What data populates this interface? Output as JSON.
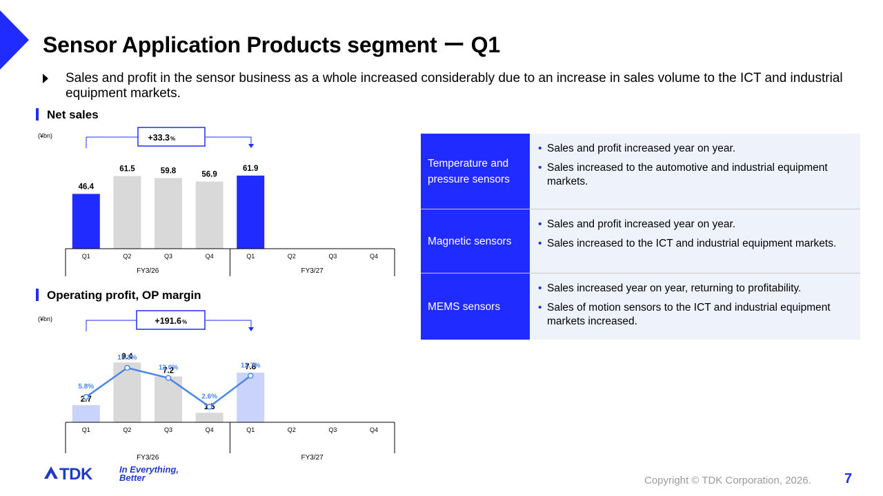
{
  "slide": {
    "title": "Sensor Application Products segment ー Q1",
    "bullet": "Sales and profit in the sensor business as a whole increased considerably due to an increase in sales volume to the ICT and industrial equipment markets."
  },
  "colors": {
    "accent": "#1f2bff",
    "gray_bar": "#d9d9d9",
    "light_blue_bar": "#c9d3fb",
    "line": "#4a86e8",
    "table_bg": "#eef3fb"
  },
  "net_sales": {
    "label": "Net sales",
    "unit": "(¥bn)",
    "growth": "+33.3",
    "growth_unit": "%"
  },
  "op_profit": {
    "label": "Operating profit, OP margin",
    "unit": "(¥bn)",
    "growth": "+191.6",
    "growth_unit": "%"
  },
  "chart_data": [
    {
      "type": "bar",
      "title": "Net sales",
      "unit": "(¥bn)",
      "categories": [
        "Q1",
        "Q2",
        "Q3",
        "Q4",
        "Q1",
        "Q2",
        "Q3",
        "Q4"
      ],
      "groups": [
        "FY3/26",
        "FY3/27"
      ],
      "values": [
        46.4,
        61.5,
        59.8,
        56.9,
        61.9,
        null,
        null,
        null
      ],
      "highlight": [
        true,
        false,
        false,
        false,
        true,
        false,
        false,
        false
      ],
      "ylim": [
        0,
        70
      ],
      "annotation": "+33.3%"
    },
    {
      "type": "bar",
      "title": "Operating profit, OP margin",
      "unit": "(¥bn)",
      "categories": [
        "Q1",
        "Q2",
        "Q3",
        "Q4",
        "Q1",
        "Q2",
        "Q3",
        "Q4"
      ],
      "groups": [
        "FY3/26",
        "FY3/27"
      ],
      "values": [
        2.7,
        9.4,
        7.2,
        1.5,
        7.8,
        null,
        null,
        null
      ],
      "margin": [
        5.8,
        15.3,
        12.0,
        2.6,
        12.7,
        null,
        null,
        null
      ],
      "margin_labels": [
        "5.8%",
        "15.3%",
        "12.0%",
        "2.6%",
        "12.7%"
      ],
      "highlight": [
        true,
        false,
        false,
        false,
        true,
        false,
        false,
        false
      ],
      "ylim": [
        0,
        10.5
      ],
      "annotation": "+191.6%"
    }
  ],
  "table": {
    "rows": [
      {
        "head": "Temperature and pressure sensors",
        "items": [
          "Sales and profit increased year on year.",
          "Sales increased to the automotive and industrial equipment markets."
        ]
      },
      {
        "head": "Magnetic sensors",
        "items": [
          "Sales and profit increased year on year.",
          "Sales increased to the ICT and industrial equipment markets."
        ]
      },
      {
        "head": "MEMS sensors",
        "items": [
          "Sales increased year on year, returning to profitability.",
          "Sales of motion sensors to the ICT and industrial equipment markets increased."
        ]
      }
    ]
  },
  "footer": {
    "logo": "TDK",
    "tagline_1": "In Everything,",
    "tagline_2": "Better",
    "copyright": "Copyright © TDK Corporation, 2026.",
    "page": "7"
  }
}
